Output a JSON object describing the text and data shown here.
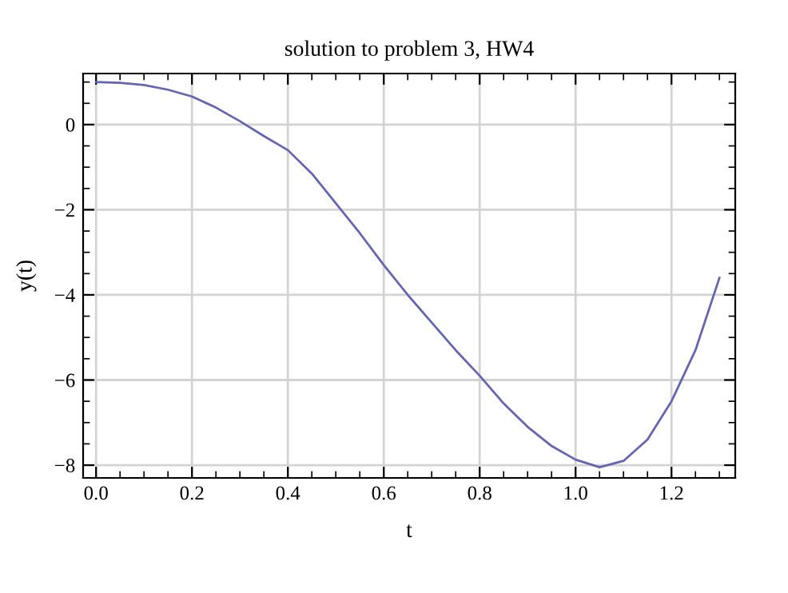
{
  "chart_data": {
    "type": "line",
    "title": "solution to problem 3, HW4",
    "xlabel": "t",
    "ylabel": "y(t)",
    "x": [
      0,
      0.05,
      0.1,
      0.15,
      0.2,
      0.25,
      0.3,
      0.35,
      0.4,
      0.45,
      0.5,
      0.55,
      0.6,
      0.65,
      0.7,
      0.75,
      0.8,
      0.85,
      0.9,
      0.95,
      1.0,
      1.05,
      1.1,
      1.15,
      1.2,
      1.25,
      1.3
    ],
    "series": [
      {
        "color": "#6565b0",
        "values": [
          1.0,
          0.98,
          0.93,
          0.82,
          0.66,
          0.4,
          0.08,
          -0.27,
          -0.6,
          -1.15,
          -1.85,
          -2.55,
          -3.3,
          -4.0,
          -4.65,
          -5.3,
          -5.9,
          -6.55,
          -7.1,
          -7.55,
          -7.87,
          -8.05,
          -7.9,
          -7.4,
          -6.5,
          -5.3,
          -3.6
        ]
      }
    ],
    "xlim": [
      -0.027,
      1.333
    ],
    "ylim": [
      -8.3,
      1.2
    ],
    "xticks": [
      {
        "value": 0,
        "label": "0.0"
      },
      0.2,
      0.4,
      0.6,
      0.8,
      {
        "value": 1,
        "label": "1.0"
      },
      1.2
    ],
    "yticks": [
      {
        "value": -8,
        "label": "−8"
      },
      {
        "value": -6,
        "label": "−6"
      },
      {
        "value": -4,
        "label": "−4"
      },
      {
        "value": -2,
        "label": "−2"
      },
      0
    ],
    "grid": true,
    "marker": "none",
    "line_style": "solid"
  }
}
